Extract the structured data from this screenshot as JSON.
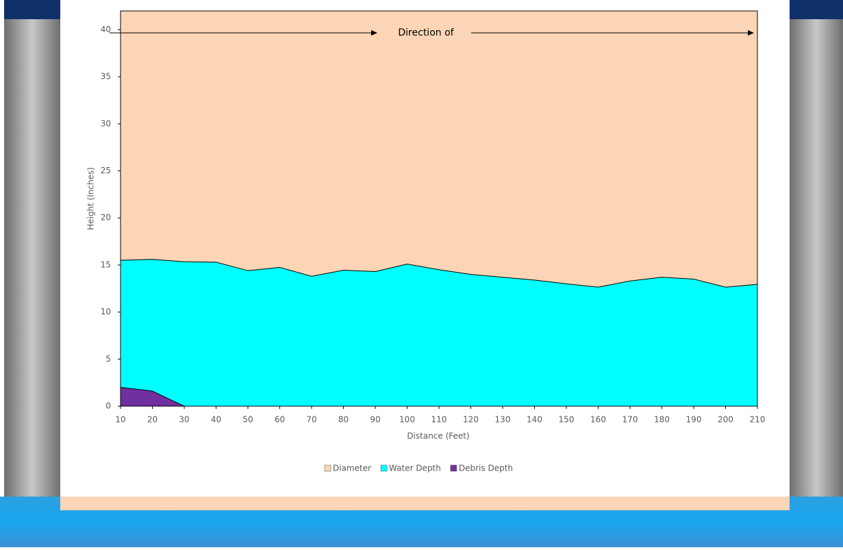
{
  "chart_data": {
    "type": "area",
    "annotation": "Direction of",
    "x_label": "Distance (Feet)",
    "y_label": "Height (Inches)",
    "x": [
      10,
      20,
      30,
      40,
      50,
      60,
      70,
      80,
      90,
      100,
      110,
      120,
      130,
      140,
      150,
      160,
      170,
      180,
      190,
      200,
      210
    ],
    "xlim": [
      10,
      210
    ],
    "xticks": [
      10,
      20,
      30,
      40,
      50,
      60,
      70,
      80,
      90,
      100,
      110,
      120,
      130,
      140,
      150,
      160,
      170,
      180,
      190,
      200,
      210
    ],
    "ylim": [
      0,
      42
    ],
    "yticks": [
      0,
      5,
      10,
      15,
      20,
      25,
      30,
      35,
      40
    ],
    "legend": "bottom",
    "series": [
      {
        "name": "Diameter",
        "color": "#fbd5b5",
        "values": [
          42,
          42,
          42,
          42,
          42,
          42,
          42,
          42,
          42,
          42,
          42,
          42,
          42,
          42,
          42,
          42,
          42,
          42,
          42,
          42,
          42
        ]
      },
      {
        "name": "Water Depth",
        "color": "#00ffff",
        "values": [
          15.5,
          15.6,
          15.35,
          15.3,
          14.4,
          14.75,
          13.8,
          14.45,
          14.3,
          15.1,
          14.5,
          14.0,
          13.7,
          13.4,
          13.0,
          12.65,
          13.3,
          13.7,
          13.5,
          12.65,
          12.95
        ]
      },
      {
        "name": "Debris Depth",
        "color": "#7030a0",
        "values": [
          2,
          1.6,
          0,
          0,
          0,
          0,
          0,
          0,
          0,
          0,
          0,
          0,
          0,
          0,
          0,
          0,
          0,
          0,
          0,
          0,
          0
        ]
      }
    ]
  }
}
